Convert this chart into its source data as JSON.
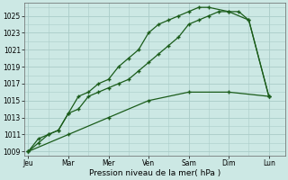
{
  "xlabel": "Pression niveau de la mer( hPa )",
  "background_color": "#cce8e4",
  "grid_color": "#aaccc8",
  "line_color": "#1a5c1a",
  "days": [
    "Jeu",
    "Mar",
    "Mer",
    "Ven",
    "Sam",
    "Dim",
    "Lun"
  ],
  "day_positions": [
    0,
    2,
    4,
    6,
    8,
    10,
    12
  ],
  "xlim": [
    -0.2,
    12.8
  ],
  "ylim": [
    1008.5,
    1026.5
  ],
  "yticks": [
    1009,
    1011,
    1013,
    1015,
    1017,
    1019,
    1021,
    1023,
    1025
  ],
  "line1_x": [
    0,
    2,
    4,
    6,
    8,
    10,
    12
  ],
  "line1_y": [
    1009,
    1011,
    1013,
    1015,
    1016,
    1016,
    1015.5
  ],
  "line2_x": [
    0,
    0.5,
    1,
    1.5,
    2,
    2.5,
    3,
    3.5,
    4,
    4.5,
    5,
    5.5,
    6,
    6.5,
    7,
    7.5,
    8,
    8.5,
    9,
    9.5,
    10,
    10.5,
    11,
    12
  ],
  "line2_y": [
    1009,
    1010,
    1011,
    1011.5,
    1013.5,
    1014,
    1015.5,
    1016.0,
    1016.5,
    1017.0,
    1017.5,
    1018.5,
    1019.5,
    1020.5,
    1021.5,
    1022.5,
    1024.0,
    1024.5,
    1025.0,
    1025.5,
    1025.5,
    1025.5,
    1024.5,
    1015.5
  ],
  "line3_x": [
    0,
    0.5,
    1,
    1.5,
    2,
    2.5,
    3,
    3.5,
    4,
    4.5,
    5,
    5.5,
    6,
    6.5,
    7,
    7.5,
    8,
    8.5,
    9,
    10,
    11,
    12
  ],
  "line3_y": [
    1009,
    1010.5,
    1011,
    1011.5,
    1013.5,
    1015.5,
    1016.0,
    1017.0,
    1017.5,
    1019.0,
    1020.0,
    1021.0,
    1023.0,
    1024.0,
    1024.5,
    1025.0,
    1025.5,
    1026.0,
    1026.0,
    1025.5,
    1024.5,
    1015.5
  ]
}
